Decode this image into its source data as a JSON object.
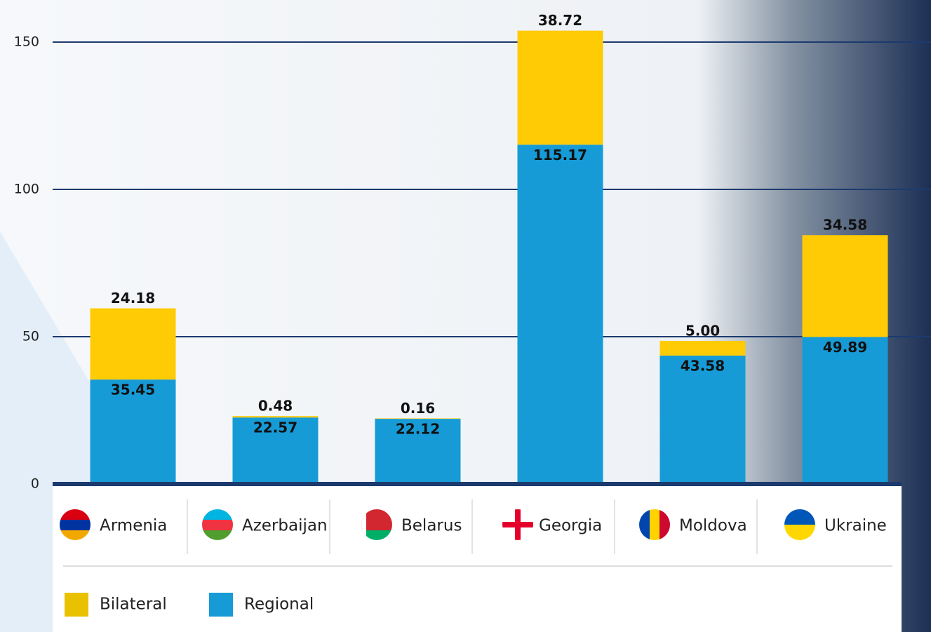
{
  "chart_data": {
    "type": "stacked_bar",
    "categories": [
      "Armenia",
      "Azerbaijan",
      "Belarus",
      "Georgia",
      "Moldova",
      "Ukraine"
    ],
    "series": [
      {
        "name": "Regional",
        "color": "#169bd7",
        "values": [
          35.45,
          22.57,
          22.12,
          115.17,
          43.58,
          49.89
        ]
      },
      {
        "name": "Bilateral",
        "color": "#ffcb05",
        "values": [
          24.18,
          0.48,
          0.16,
          38.72,
          5.0,
          34.58
        ],
        "value_labels": [
          "24.18",
          "0.48",
          "0.16",
          "38.72",
          "5.00",
          "34.58"
        ]
      }
    ],
    "ylim": [
      0,
      160
    ],
    "yticks": [
      0,
      50,
      100,
      150
    ],
    "grid": true
  }
}
